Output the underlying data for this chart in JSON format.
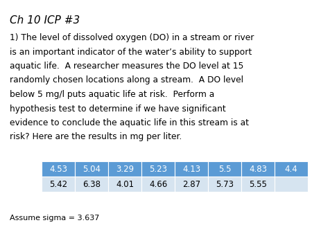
{
  "title": "Ch 10 ICP #3",
  "body_lines": [
    "1) The level of dissolved oxygen (DO) in a stream or river",
    "is an important indicator of the water’s ability to support",
    "aquatic life.  A researcher measures the DO level at 15",
    "randomly chosen locations along a stream.  A DO level",
    "below 5 mg/l puts aquatic life at risk.  Perform a",
    "hypothesis test to determine if we have significant",
    "evidence to conclude the aquatic life in this stream is at",
    "risk? Here are the results in mg per liter."
  ],
  "table_row1": [
    "4.53",
    "5.04",
    "3.29",
    "5.23",
    "4.13",
    "5.5",
    "4.83",
    "4.4"
  ],
  "table_row2": [
    "5.42",
    "6.38",
    "4.01",
    "4.66",
    "2.87",
    "5.73",
    "5.55",
    ""
  ],
  "footer_text": "Assume sigma = 3.637",
  "header_bg_color": "#5b9bd5",
  "header_text_color": "#ffffff",
  "row2_bg_color": "#d6e4f0",
  "row2_text_color": "#000000",
  "background_color": "#ffffff",
  "title_fontsize": 11,
  "body_fontsize": 8.8,
  "table_fontsize": 8.5,
  "footer_fontsize": 8.0
}
